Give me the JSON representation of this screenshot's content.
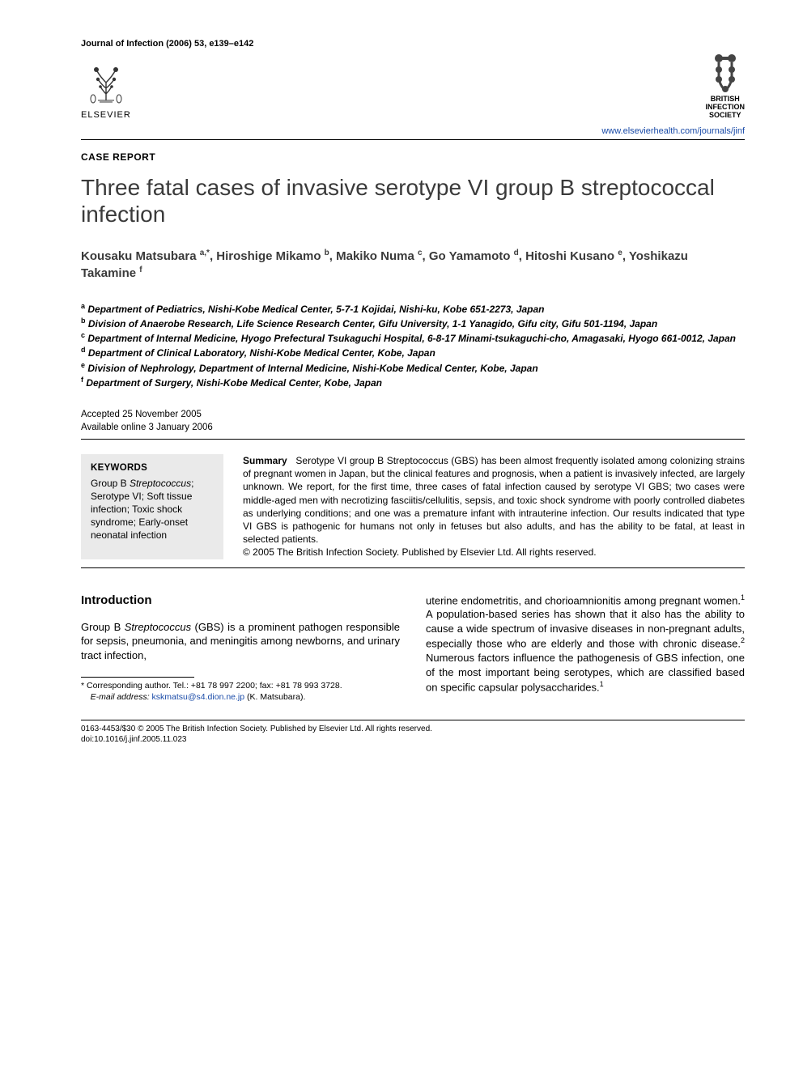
{
  "header": {
    "journal_line": "Journal of Infection (2006) 53, e139–e142",
    "elsevier_label": "ELSEVIER",
    "society_label_l1": "BRITISH",
    "society_label_l2": "INFECTION",
    "society_label_l3": "SOCIETY",
    "url": "www.elsevierhealth.com/journals/jinf"
  },
  "article": {
    "section": "CASE REPORT",
    "title": "Three fatal cases of invasive serotype VI group B streptococcal infection",
    "authors_html": "Kousaku Matsubara <sup>a,*</sup>, Hiroshige Mikamo <sup>b</sup>, Makiko Numa <sup>c</sup>, Go Yamamoto <sup>d</sup>, Hitoshi Kusano <sup>e</sup>, Yoshikazu Takamine <sup>f</sup>",
    "affiliations": [
      {
        "sup": "a",
        "text": "Department of Pediatrics, Nishi-Kobe Medical Center, 5-7-1 Kojidai, Nishi-ku, Kobe 651-2273, Japan"
      },
      {
        "sup": "b",
        "text": "Division of Anaerobe Research, Life Science Research Center, Gifu University, 1-1 Yanagido, Gifu city, Gifu 501-1194, Japan"
      },
      {
        "sup": "c",
        "text": "Department of Internal Medicine, Hyogo Prefectural Tsukaguchi Hospital, 6-8-17 Minami-tsukaguchi-cho, Amagasaki, Hyogo 661-0012, Japan"
      },
      {
        "sup": "d",
        "text": "Department of Clinical Laboratory, Nishi-Kobe Medical Center, Kobe, Japan"
      },
      {
        "sup": "e",
        "text": "Division of Nephrology, Department of Internal Medicine, Nishi-Kobe Medical Center, Kobe, Japan"
      },
      {
        "sup": "f",
        "text": "Department of Surgery, Nishi-Kobe Medical Center, Kobe, Japan"
      }
    ],
    "accepted": "Accepted 25 November 2005",
    "online": "Available online 3 January 2006"
  },
  "keywords": {
    "title": "KEYWORDS",
    "items": "Group B Streptococcus; Serotype VI; Soft tissue infection; Toxic shock syndrome; Early-onset neonatal infection"
  },
  "summary": {
    "lead": "Summary",
    "body": "Serotype VI group B Streptococcus (GBS) has been almost frequently isolated among colonizing strains of pregnant women in Japan, but the clinical features and prognosis, when a patient is invasively infected, are largely unknown. We report, for the first time, three cases of fatal infection caused by serotype VI GBS; two cases were middle-aged men with necrotizing fasciitis/cellulitis, sepsis, and toxic shock syndrome with poorly controlled diabetes as underlying conditions; and one was a premature infant with intrauterine infection. Our results indicated that type VI GBS is pathogenic for humans not only in fetuses but also adults, and has the ability to be fatal, at least in selected patients.",
    "copyright": "© 2005 The British Infection Society. Published by Elsevier Ltd. All rights reserved."
  },
  "body": {
    "intro_heading": "Introduction",
    "col1_p1": "Group B Streptococcus (GBS) is a prominent pathogen responsible for sepsis, pneumonia, and meningitis among newborns, and urinary tract infection,",
    "col2_p1": "uterine endometritis, and chorioamnionitis among pregnant women.¹ A population-based series has shown that it also has the ability to cause a wide spectrum of invasive diseases in non-pregnant adults, especially those who are elderly and those with chronic disease.² Numerous factors influence the pathogenesis of GBS infection, one of the most important being serotypes, which are classified based on specific capsular polysaccharides.¹"
  },
  "footnotes": {
    "corresponding": "* Corresponding author. Tel.: +81 78 997 2200; fax: +81 78 993 3728.",
    "email_label": "E-mail address:",
    "email": "kskmatsu@s4.dion.ne.jp",
    "email_name": "(K. Matsubara)."
  },
  "footer": {
    "line1": "0163-4453/$30 © 2005 The British Infection Society. Published by Elsevier Ltd. All rights reserved.",
    "line2": "doi:10.1016/j.jinf.2005.11.023"
  },
  "colors": {
    "link": "#1a4ba8",
    "kw_bg": "#eaeaea",
    "text": "#000000",
    "title_gray": "#3a3a3a"
  }
}
